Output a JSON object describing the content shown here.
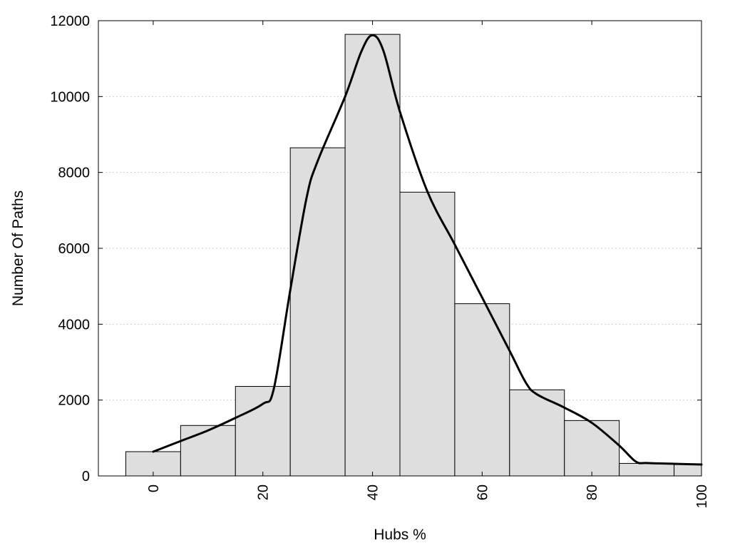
{
  "chart_data": {
    "type": "bar",
    "xlabel": "Hubs %",
    "ylabel": "Number Of Paths",
    "xlim": [
      -10,
      100
    ],
    "ylim": [
      0,
      12000
    ],
    "x_ticks": [
      "0",
      "20",
      "40",
      "60",
      "80",
      "100"
    ],
    "y_ticks": [
      "0",
      "2000",
      "4000",
      "6000",
      "8000",
      "10000",
      "12000"
    ],
    "grid": "horizontal-dotted",
    "bin_width": 10,
    "bar_color": "#dedede",
    "bars": [
      {
        "x": 0,
        "value": 640
      },
      {
        "x": 10,
        "value": 1330
      },
      {
        "x": 20,
        "value": 2360
      },
      {
        "x": 30,
        "value": 8650
      },
      {
        "x": 40,
        "value": 11640
      },
      {
        "x": 50,
        "value": 7480
      },
      {
        "x": 60,
        "value": 4540
      },
      {
        "x": 70,
        "value": 2270
      },
      {
        "x": 80,
        "value": 1460
      },
      {
        "x": 90,
        "value": 330
      },
      {
        "x": 100,
        "value": 300
      }
    ],
    "series": [
      {
        "type": "line",
        "color": "#000000",
        "x": [
          0,
          5,
          10,
          15,
          20,
          22,
          25,
          28,
          30,
          35,
          38,
          40,
          42,
          45,
          50,
          55,
          60,
          65,
          68,
          70,
          75,
          80,
          85,
          88,
          90,
          95,
          100
        ],
        "y": [
          640,
          920,
          1200,
          1530,
          1900,
          2300,
          4900,
          7350,
          8300,
          10000,
          11200,
          11620,
          11200,
          9600,
          7500,
          6100,
          4700,
          3300,
          2450,
          2150,
          1800,
          1400,
          800,
          380,
          340,
          320,
          300
        ]
      }
    ]
  }
}
